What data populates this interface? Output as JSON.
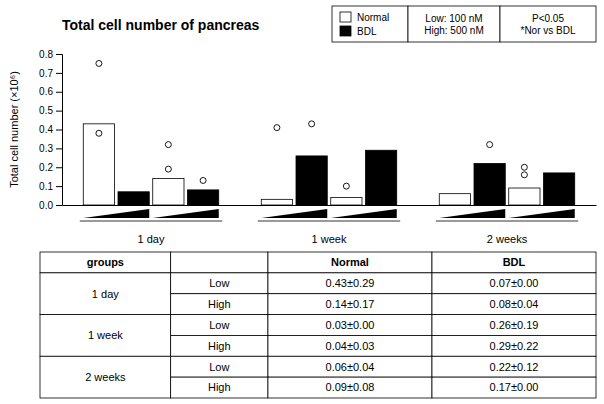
{
  "chart_data": {
    "type": "bar",
    "title": "Total cell number of pancreas",
    "ylabel": "Total cell number (×10⁶)",
    "categories": [
      "1 day",
      "1 week",
      "2 weeks"
    ],
    "series": [
      {
        "name": "Normal",
        "color": "#ffffff",
        "values": [
          0.43,
          0.03,
          0.06
        ],
        "outliers": [
          [
            0.38,
            0.75
          ],
          [
            0.41
          ],
          []
        ]
      },
      {
        "name": "BDL",
        "color": "#000000",
        "values": [
          0.07,
          0.26,
          0.22
        ],
        "outliers": [
          [],
          [
            0.43
          ],
          [
            0.32
          ]
        ]
      },
      {
        "name": "Normal",
        "color": "#ffffff",
        "values": [
          0.14,
          0.04,
          0.09
        ],
        "outliers": [
          [
            0.19,
            0.32
          ],
          [
            0.1
          ],
          [
            0.16,
            0.2
          ]
        ]
      },
      {
        "name": "BDL",
        "color": "#000000",
        "values": [
          0.08,
          0.29,
          0.17
        ],
        "outliers": [
          [
            0.13
          ],
          [],
          []
        ]
      }
    ],
    "ylim": [
      0,
      0.8
    ],
    "yticks": [
      {
        "value": 0,
        "label": "0.0"
      },
      0.1,
      0.2,
      0.3,
      0.4,
      0.5,
      0.6,
      0.7,
      0.8
    ],
    "grid": false,
    "legend": "top-right",
    "annotations": [
      "Low: 100 nM\nHigh: 500 nM",
      "P<0.05\n*Nor vs BDL"
    ],
    "table": {
      "header": [
        "groups",
        null,
        "Normal",
        "BDL"
      ],
      "groups": [
        {
          "label": "1 day",
          "rows": [
            [
              "Low",
              "0.43±0.29",
              "0.07±0.00"
            ],
            [
              "High",
              "0.14±0.17",
              "0.08±0.04"
            ]
          ]
        },
        {
          "label": "1 week",
          "rows": [
            [
              "Low",
              "0.03±0.00",
              "0.26±0.19"
            ],
            [
              "High",
              "0.04±0.03",
              "0.29±0.22"
            ]
          ]
        },
        {
          "label": "2 weeks",
          "rows": [
            [
              "Low",
              "0.06±0.04",
              "0.22±0.12"
            ],
            [
              "High",
              "0.09±0.08",
              "0.17±0.00"
            ]
          ]
        }
      ]
    }
  }
}
